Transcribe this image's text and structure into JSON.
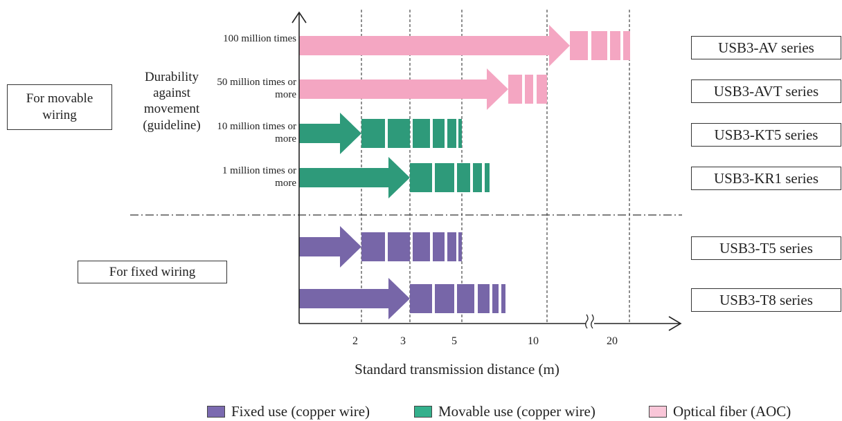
{
  "chart_data": {
    "type": "bar",
    "x_axis": {
      "title": "Standard transmission distance (m)",
      "ticks": [
        {
          "label": "2",
          "value": 2
        },
        {
          "label": "3",
          "value": 3
        },
        {
          "label": "5",
          "value": 5
        },
        {
          "label": "10",
          "value": 10
        },
        {
          "label": "20",
          "value": 20
        }
      ],
      "axis_break": true
    },
    "y_axis": {
      "title": "Durability against movement (guideline)"
    },
    "groups": [
      {
        "label": "For movable wiring"
      },
      {
        "label": "For fixed wiring"
      }
    ],
    "series_types": [
      {
        "name": "Fixed use (copper wire)",
        "color": "#7766a8",
        "legend_color": "#7b6ab0"
      },
      {
        "name": "Movable use (copper wire)",
        "color": "#2e9a7a",
        "legend_color": "#34b08c"
      },
      {
        "name": "Optical fiber (AOC)",
        "color": "#f4a6c2",
        "legend_color": "#f9c6d8"
      }
    ],
    "rows": [
      {
        "series": "USB3-AV series",
        "durability": "100 million times",
        "type": 2,
        "group": 0,
        "max_distance": 20
      },
      {
        "series": "USB3-AVT series",
        "durability": "50 million times or more",
        "type": 2,
        "group": 0,
        "max_distance": 10
      },
      {
        "series": "USB3-KT5 series",
        "durability": "10 million times or more",
        "type": 1,
        "group": 0,
        "max_distance": 5
      },
      {
        "series": "USB3-KR1 series",
        "durability": "1 million times or more",
        "type": 1,
        "group": 0,
        "max_distance": 5
      },
      {
        "series": "USB3-T5 series",
        "durability": "",
        "type": 0,
        "group": 1,
        "max_distance": 5
      },
      {
        "series": "USB3-T8 series",
        "durability": "",
        "type": 0,
        "group": 1,
        "max_distance": 5
      }
    ],
    "grid": "dashed vertical lines at tick values",
    "legend_position": "bottom-right"
  }
}
